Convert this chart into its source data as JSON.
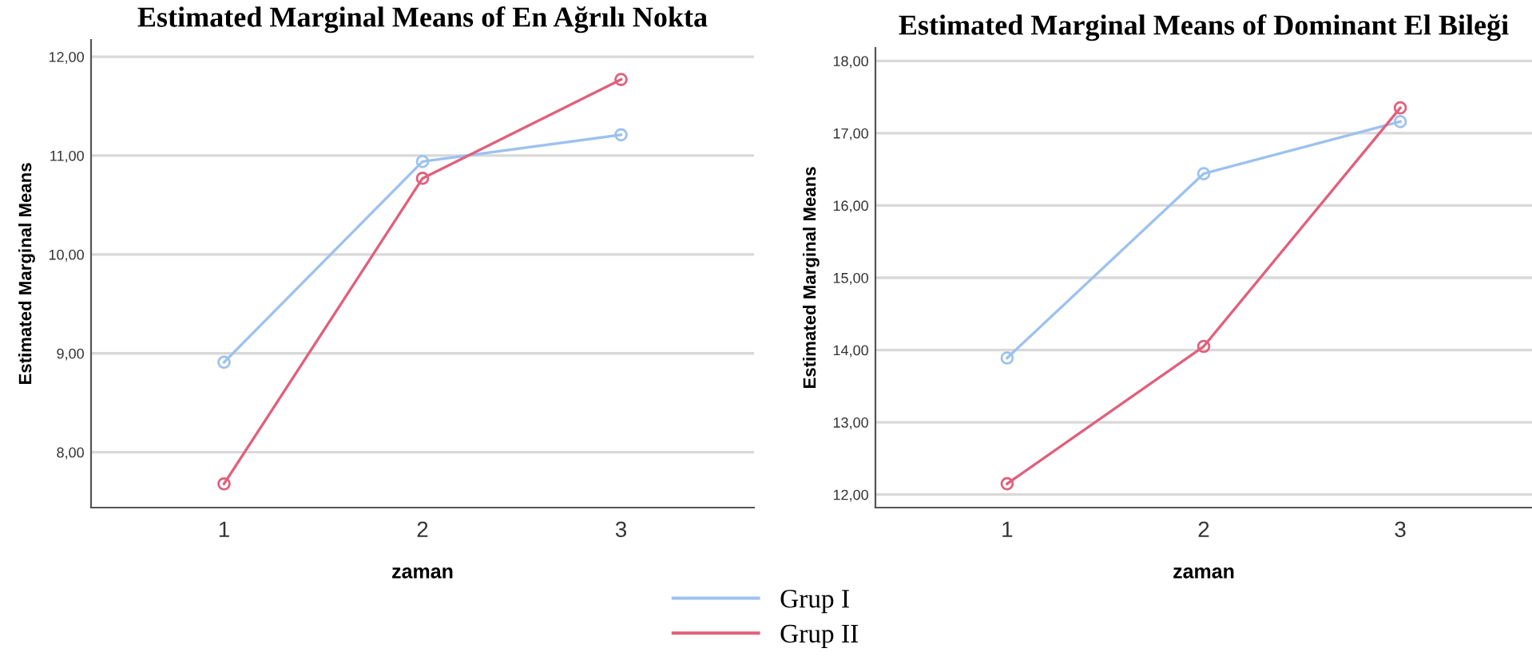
{
  "chart_data": [
    {
      "type": "line",
      "title": "Estimated Marginal Means of En Ağrılı Nokta",
      "xlabel": "zaman",
      "ylabel": "Estimated Marginal Means",
      "categories": [
        "1",
        "2",
        "3"
      ],
      "series": [
        {
          "name": "Grup I",
          "color": "#9cc2ee",
          "values": [
            8.91,
            10.94,
            11.21
          ]
        },
        {
          "name": "Grup II",
          "color": "#e0607c",
          "values": [
            7.68,
            10.77,
            11.77
          ]
        }
      ],
      "ylim": [
        7.44,
        12.17
      ],
      "yticks": [
        {
          "value": 8,
          "label": "8,00"
        },
        {
          "value": 9,
          "label": "9,00"
        },
        {
          "value": 10,
          "label": "10,00"
        },
        {
          "value": 11,
          "label": "11,00"
        },
        {
          "value": 12,
          "label": "12,00"
        }
      ],
      "grid": "y",
      "marker": "circle",
      "line_style": "solid",
      "legend": "bottom"
    },
    {
      "type": "line",
      "title": "Estimated Marginal Means of Dominant El Bileği",
      "xlabel": "zaman",
      "ylabel": "Estimated Marginal Means",
      "categories": [
        "1",
        "2",
        "3"
      ],
      "series": [
        {
          "color": "#9cc2ee",
          "values": [
            13.89,
            16.44,
            17.16
          ]
        },
        {
          "color": "#e0607c",
          "values": [
            12.15,
            14.05,
            17.35
          ]
        }
      ],
      "ylim": [
        11.82,
        18.18
      ],
      "yticks": [
        {
          "value": 12,
          "label": "12,00"
        },
        {
          "value": 13,
          "label": "13,00"
        },
        {
          "value": 14,
          "label": "14,00"
        },
        {
          "value": 15,
          "label": "15,00"
        },
        {
          "value": 16,
          "label": "16,00"
        },
        {
          "value": 17,
          "label": "17,00"
        },
        {
          "value": 18,
          "label": "18,00"
        }
      ],
      "grid": "y",
      "marker": "circle",
      "line_style": "solid"
    }
  ]
}
